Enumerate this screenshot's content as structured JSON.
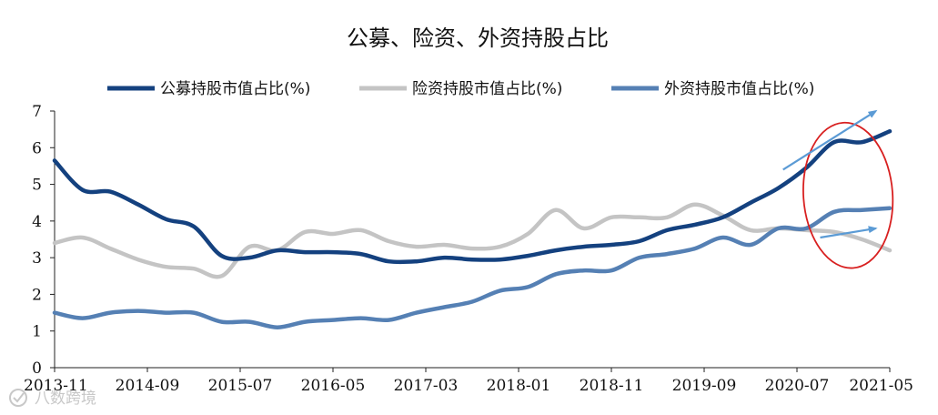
{
  "chart_data": {
    "type": "line",
    "title": "公募、险资、外资持股占比",
    "xlabel": "",
    "ylabel": "",
    "ylim": [
      0,
      7
    ],
    "yticks": [
      "0",
      "1",
      "2",
      "3",
      "4",
      "5",
      "6",
      "7"
    ],
    "xticks": [
      "2013-11",
      "2014-09",
      "2015-07",
      "2016-05",
      "2017-03",
      "2018-01",
      "2018-11",
      "2019-09",
      "2020-07",
      "2021-05"
    ],
    "x_months": [
      0,
      3,
      6,
      9,
      12,
      15,
      18,
      21,
      24,
      27,
      30,
      33,
      36,
      39,
      42,
      45,
      48,
      51,
      54,
      57,
      60,
      63,
      66,
      69,
      72,
      75,
      78,
      81,
      84,
      87,
      90
    ],
    "legend_position": "top",
    "series": [
      {
        "name": "公募持股市值占比(%)",
        "color": "#14417f",
        "values": [
          5.65,
          4.85,
          4.8,
          4.45,
          4.05,
          3.85,
          3.05,
          3.0,
          3.2,
          3.15,
          3.15,
          3.1,
          2.9,
          2.9,
          3.0,
          2.95,
          2.95,
          3.05,
          3.2,
          3.3,
          3.35,
          3.45,
          3.75,
          3.9,
          4.1,
          4.5,
          4.9,
          5.45,
          6.15,
          6.15,
          6.45
        ]
      },
      {
        "name": "险资持股市值占比(%)",
        "color": "#c4c4c4",
        "values": [
          3.4,
          3.55,
          3.25,
          2.95,
          2.75,
          2.7,
          2.5,
          3.3,
          3.2,
          3.7,
          3.65,
          3.75,
          3.45,
          3.3,
          3.35,
          3.25,
          3.3,
          3.65,
          4.3,
          3.8,
          4.1,
          4.1,
          4.1,
          4.45,
          4.15,
          3.75,
          3.8,
          3.75,
          3.7,
          3.5,
          3.2
        ]
      },
      {
        "name": "外资持股市值占比(%)",
        "color": "#5580b4",
        "values": [
          1.5,
          1.35,
          1.5,
          1.55,
          1.5,
          1.5,
          1.25,
          1.25,
          1.1,
          1.25,
          1.3,
          1.35,
          1.3,
          1.5,
          1.65,
          1.8,
          2.1,
          2.2,
          2.55,
          2.65,
          2.65,
          3.0,
          3.1,
          3.25,
          3.55,
          3.35,
          3.8,
          3.8,
          4.25,
          4.3,
          4.35
        ]
      }
    ],
    "annotations": [
      {
        "kind": "ellipse",
        "color": "#d82020"
      },
      {
        "kind": "arrow",
        "color": "#5b9bd5"
      },
      {
        "kind": "arrow",
        "color": "#5b9bd5"
      }
    ]
  },
  "watermark": "八数跨境"
}
